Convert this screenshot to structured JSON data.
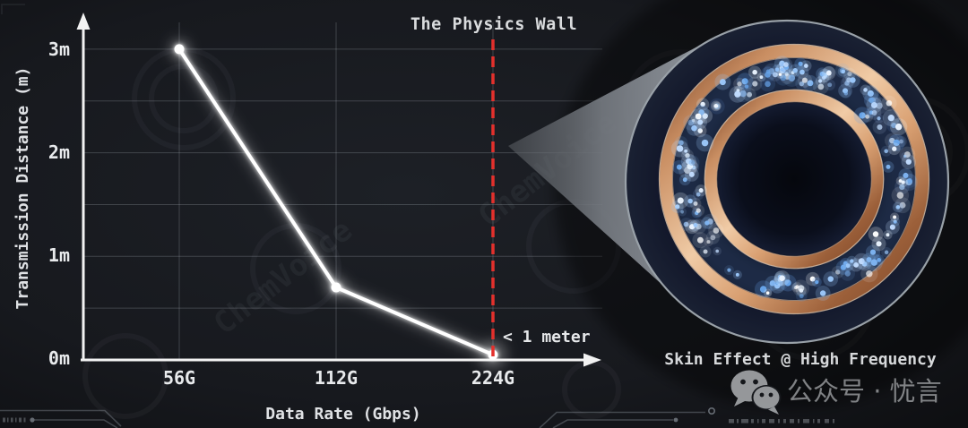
{
  "chart": {
    "title": "The Physics Wall",
    "ylabel": "Transmission Distance (m)",
    "xlabel": "Data Rate (Gbps)",
    "yticks": [
      "3m",
      "2m",
      "1m",
      "0m"
    ],
    "xticks": [
      "56G",
      "112G",
      "224G"
    ],
    "wall_note": "< 1 meter"
  },
  "chart_data": {
    "type": "line",
    "title": "The Physics Wall",
    "xlabel": "Data Rate (Gbps)",
    "ylabel": "Transmission Distance (m)",
    "categories": [
      "56G",
      "112G",
      "224G"
    ],
    "series": [
      {
        "name": "Transmission Distance (m)",
        "values": [
          3,
          0.7,
          0.05
        ]
      }
    ],
    "y_tick_labels": [
      "0m",
      "1m",
      "2m",
      "3m"
    ],
    "ylim": [
      0,
      3.35
    ],
    "grid": true,
    "grid_step_m": 0.5,
    "line_color": "#ffffff",
    "marker": "circle",
    "annotations": [
      {
        "type": "vertical_dashed_line",
        "label": "The Physics Wall",
        "x": "224G",
        "color": "#e3302c"
      },
      {
        "type": "text",
        "label": "< 1 meter",
        "x": "224G",
        "placement": "right of wall, near x-axis"
      }
    ]
  },
  "inset": {
    "caption": "Skin Effect @ High Frequency",
    "electron_dot_count": 175
  },
  "colors": {
    "background": "#17191e",
    "wall_red": "#e3302c",
    "line_white": "#ffffff",
    "copper": "#c98e62",
    "copper_highlight": "#f3d4b4",
    "electron_blue": "#9ecbff",
    "cone_gray": "#8f959b"
  },
  "background_watermark": {
    "text": "ChemVoice"
  },
  "footer_watermark": {
    "icon": "wechat-icon",
    "label": "公众号 · 忧言"
  }
}
